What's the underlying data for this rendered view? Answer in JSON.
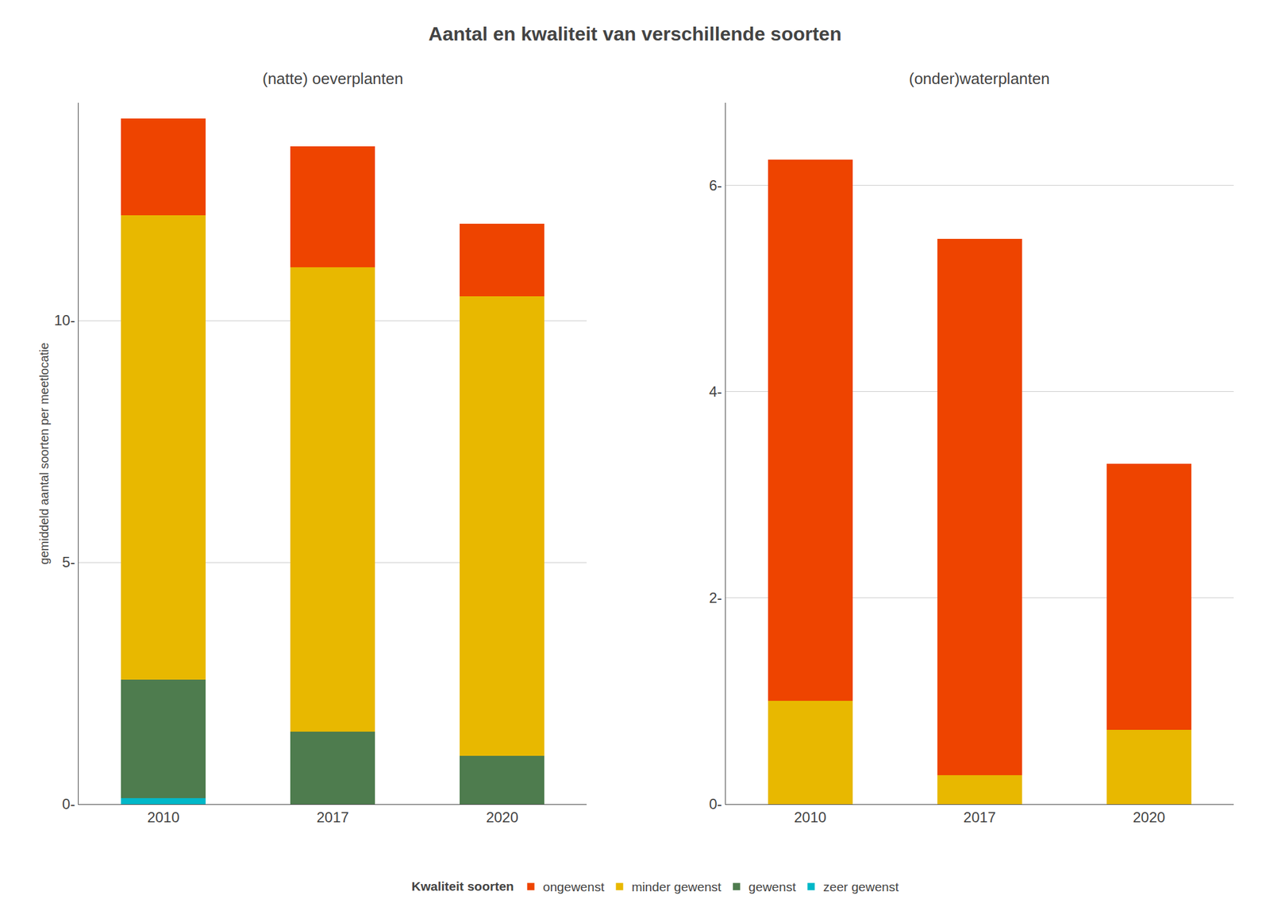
{
  "title": "Aantal en kwaliteit van verschillende soorten",
  "legend_title": "Kwaliteit soorten",
  "chart_data": [
    {
      "type": "bar",
      "stacked": true,
      "title": "(natte) oeverplanten",
      "ylabel": "gemiddeld aantal soorten per meetlocatie",
      "categories": [
        "2010",
        "2017",
        "2020"
      ],
      "series": [
        {
          "name": "zeer gewenst",
          "color": "#00B8C8",
          "values": [
            0.12,
            0.0,
            0.0
          ]
        },
        {
          "name": "gewenst",
          "color": "#4E7C4E",
          "values": [
            2.45,
            1.5,
            1.0
          ]
        },
        {
          "name": "minder gewenst",
          "color": "#E8B800",
          "values": [
            9.6,
            9.6,
            9.5
          ]
        },
        {
          "name": "ongewenst",
          "color": "#EE4400",
          "values": [
            2.0,
            2.5,
            1.5
          ]
        }
      ],
      "ylim": [
        0,
        14.5
      ],
      "yticks": [
        {
          "value": 0,
          "label": "0-"
        },
        {
          "value": 5,
          "label": "5-"
        },
        {
          "value": 10,
          "label": "10-"
        }
      ],
      "grid": true,
      "legend": "bottom"
    },
    {
      "type": "bar",
      "stacked": true,
      "title": "(onder)waterplanten",
      "categories": [
        "2010",
        "2017",
        "2020"
      ],
      "series": [
        {
          "name": "zeer gewenst",
          "color": "#00B8C8",
          "values": [
            0.0,
            0.0,
            0.0
          ]
        },
        {
          "name": "gewenst",
          "color": "#4E7C4E",
          "values": [
            0.0,
            0.0,
            0.0
          ]
        },
        {
          "name": "minder gewenst",
          "color": "#E8B800",
          "values": [
            1.0,
            0.28,
            0.72
          ]
        },
        {
          "name": "ongewenst",
          "color": "#EE4400",
          "values": [
            5.25,
            5.2,
            2.58
          ]
        }
      ],
      "ylim": [
        0,
        6.8
      ],
      "yticks": [
        {
          "value": 0,
          "label": "0-"
        },
        {
          "value": 2,
          "label": "2-"
        },
        {
          "value": 4,
          "label": "4-"
        },
        {
          "value": 6,
          "label": "6-"
        }
      ],
      "grid": true,
      "legend": "bottom"
    }
  ]
}
